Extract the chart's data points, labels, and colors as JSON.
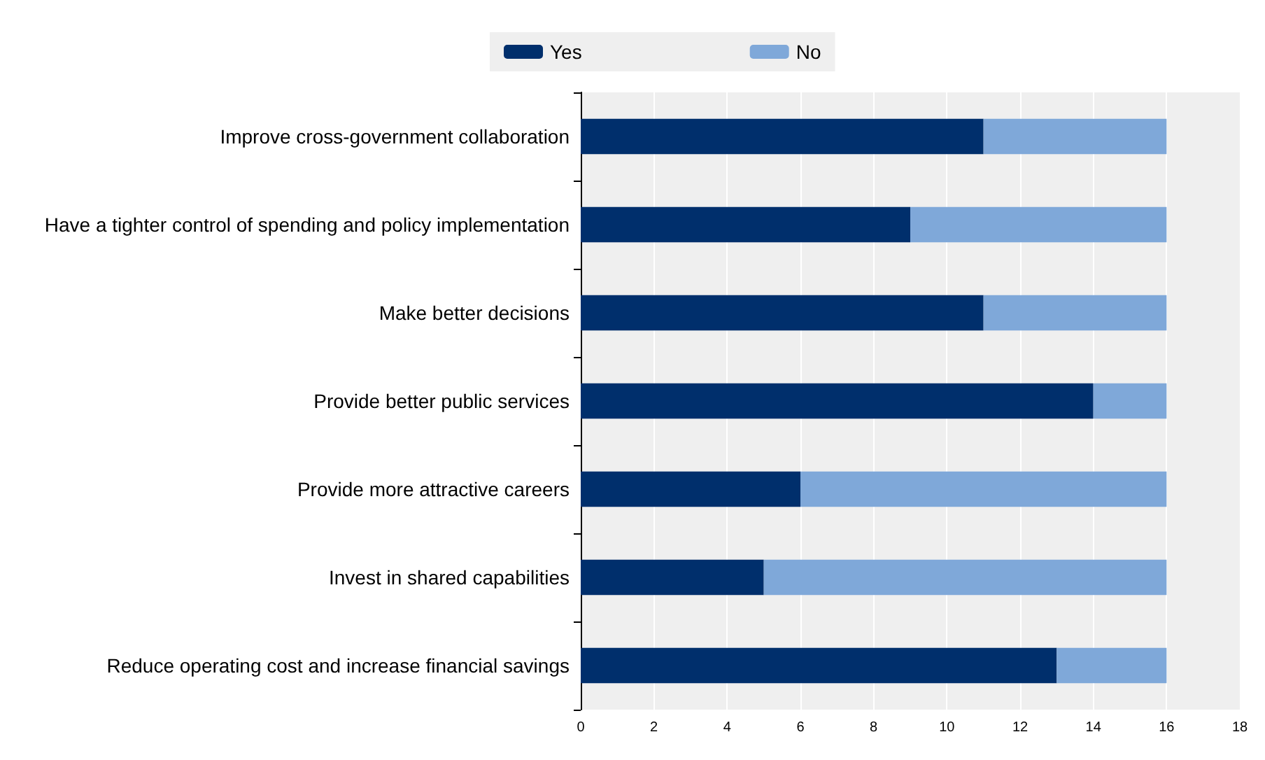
{
  "chart_data": {
    "type": "bar",
    "orientation": "horizontal",
    "stacked": true,
    "categories": [
      "Improve cross-government collaboration",
      "Have a tighter control of spending and policy implementation",
      "Make better decisions",
      "Provide better public services",
      "Provide more attractive careers",
      "Invest in shared capabilities",
      "Reduce operating cost and increase financial savings"
    ],
    "series": [
      {
        "name": "Yes",
        "color": "#002f6c",
        "values": [
          11,
          9,
          11,
          14,
          6,
          5,
          13
        ]
      },
      {
        "name": "No",
        "color": "#7fa8d9",
        "values": [
          5,
          7,
          5,
          2,
          10,
          11,
          3
        ]
      }
    ],
    "xlim": [
      0,
      18
    ],
    "xticks": [
      0,
      2,
      4,
      6,
      8,
      10,
      12,
      14,
      16,
      18
    ],
    "grid": "x",
    "legend": "top"
  }
}
